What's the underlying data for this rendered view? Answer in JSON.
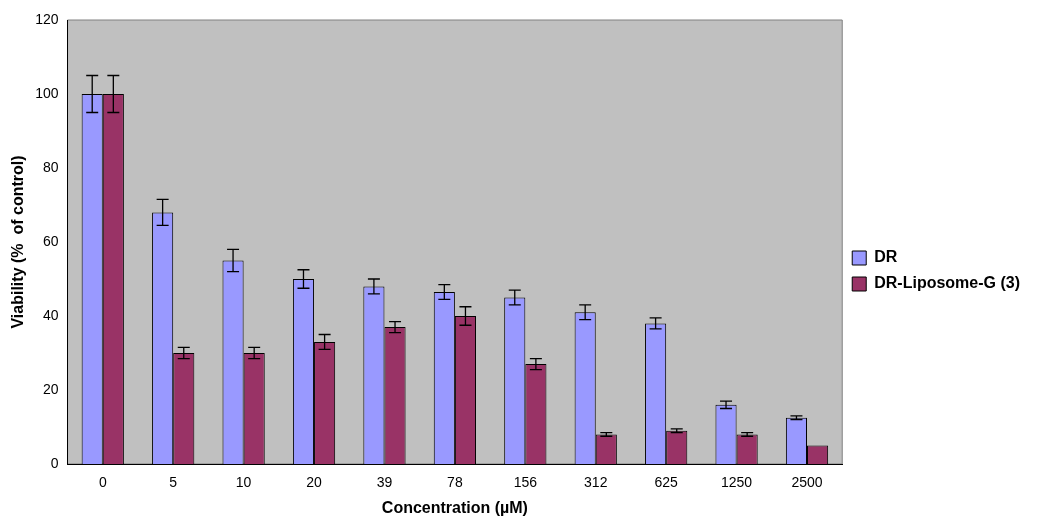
{
  "chart_data": {
    "type": "bar",
    "xlabel": "Concentration (µM)",
    "ylabel": "Viability (%  of control)",
    "categories": [
      "0",
      "5",
      "10",
      "20",
      "39",
      "78",
      "156",
      "312",
      "625",
      "1250",
      "2500"
    ],
    "series": [
      {
        "name": "DR",
        "color": "#9999ff",
        "values": [
          100,
          68,
          55,
          50,
          48,
          46.5,
          45,
          41,
          38,
          16,
          12.5
        ],
        "errors": [
          5,
          3.5,
          3,
          2.5,
          2,
          2,
          2,
          2,
          1.5,
          1,
          0.5
        ]
      },
      {
        "name": "DR-Liposome-G (3)",
        "color": "#993366",
        "values": [
          100,
          30,
          30,
          33,
          37,
          40,
          27,
          8,
          9,
          8,
          5
        ],
        "errors": [
          5,
          1.5,
          1.5,
          2,
          1.5,
          2.5,
          1.5,
          0.5,
          0.5,
          0.5,
          null
        ]
      }
    ],
    "ylim": [
      0,
      120
    ],
    "yticks": [
      0,
      20,
      40,
      60,
      80,
      100,
      120
    ],
    "grid": false,
    "legend": "right"
  }
}
